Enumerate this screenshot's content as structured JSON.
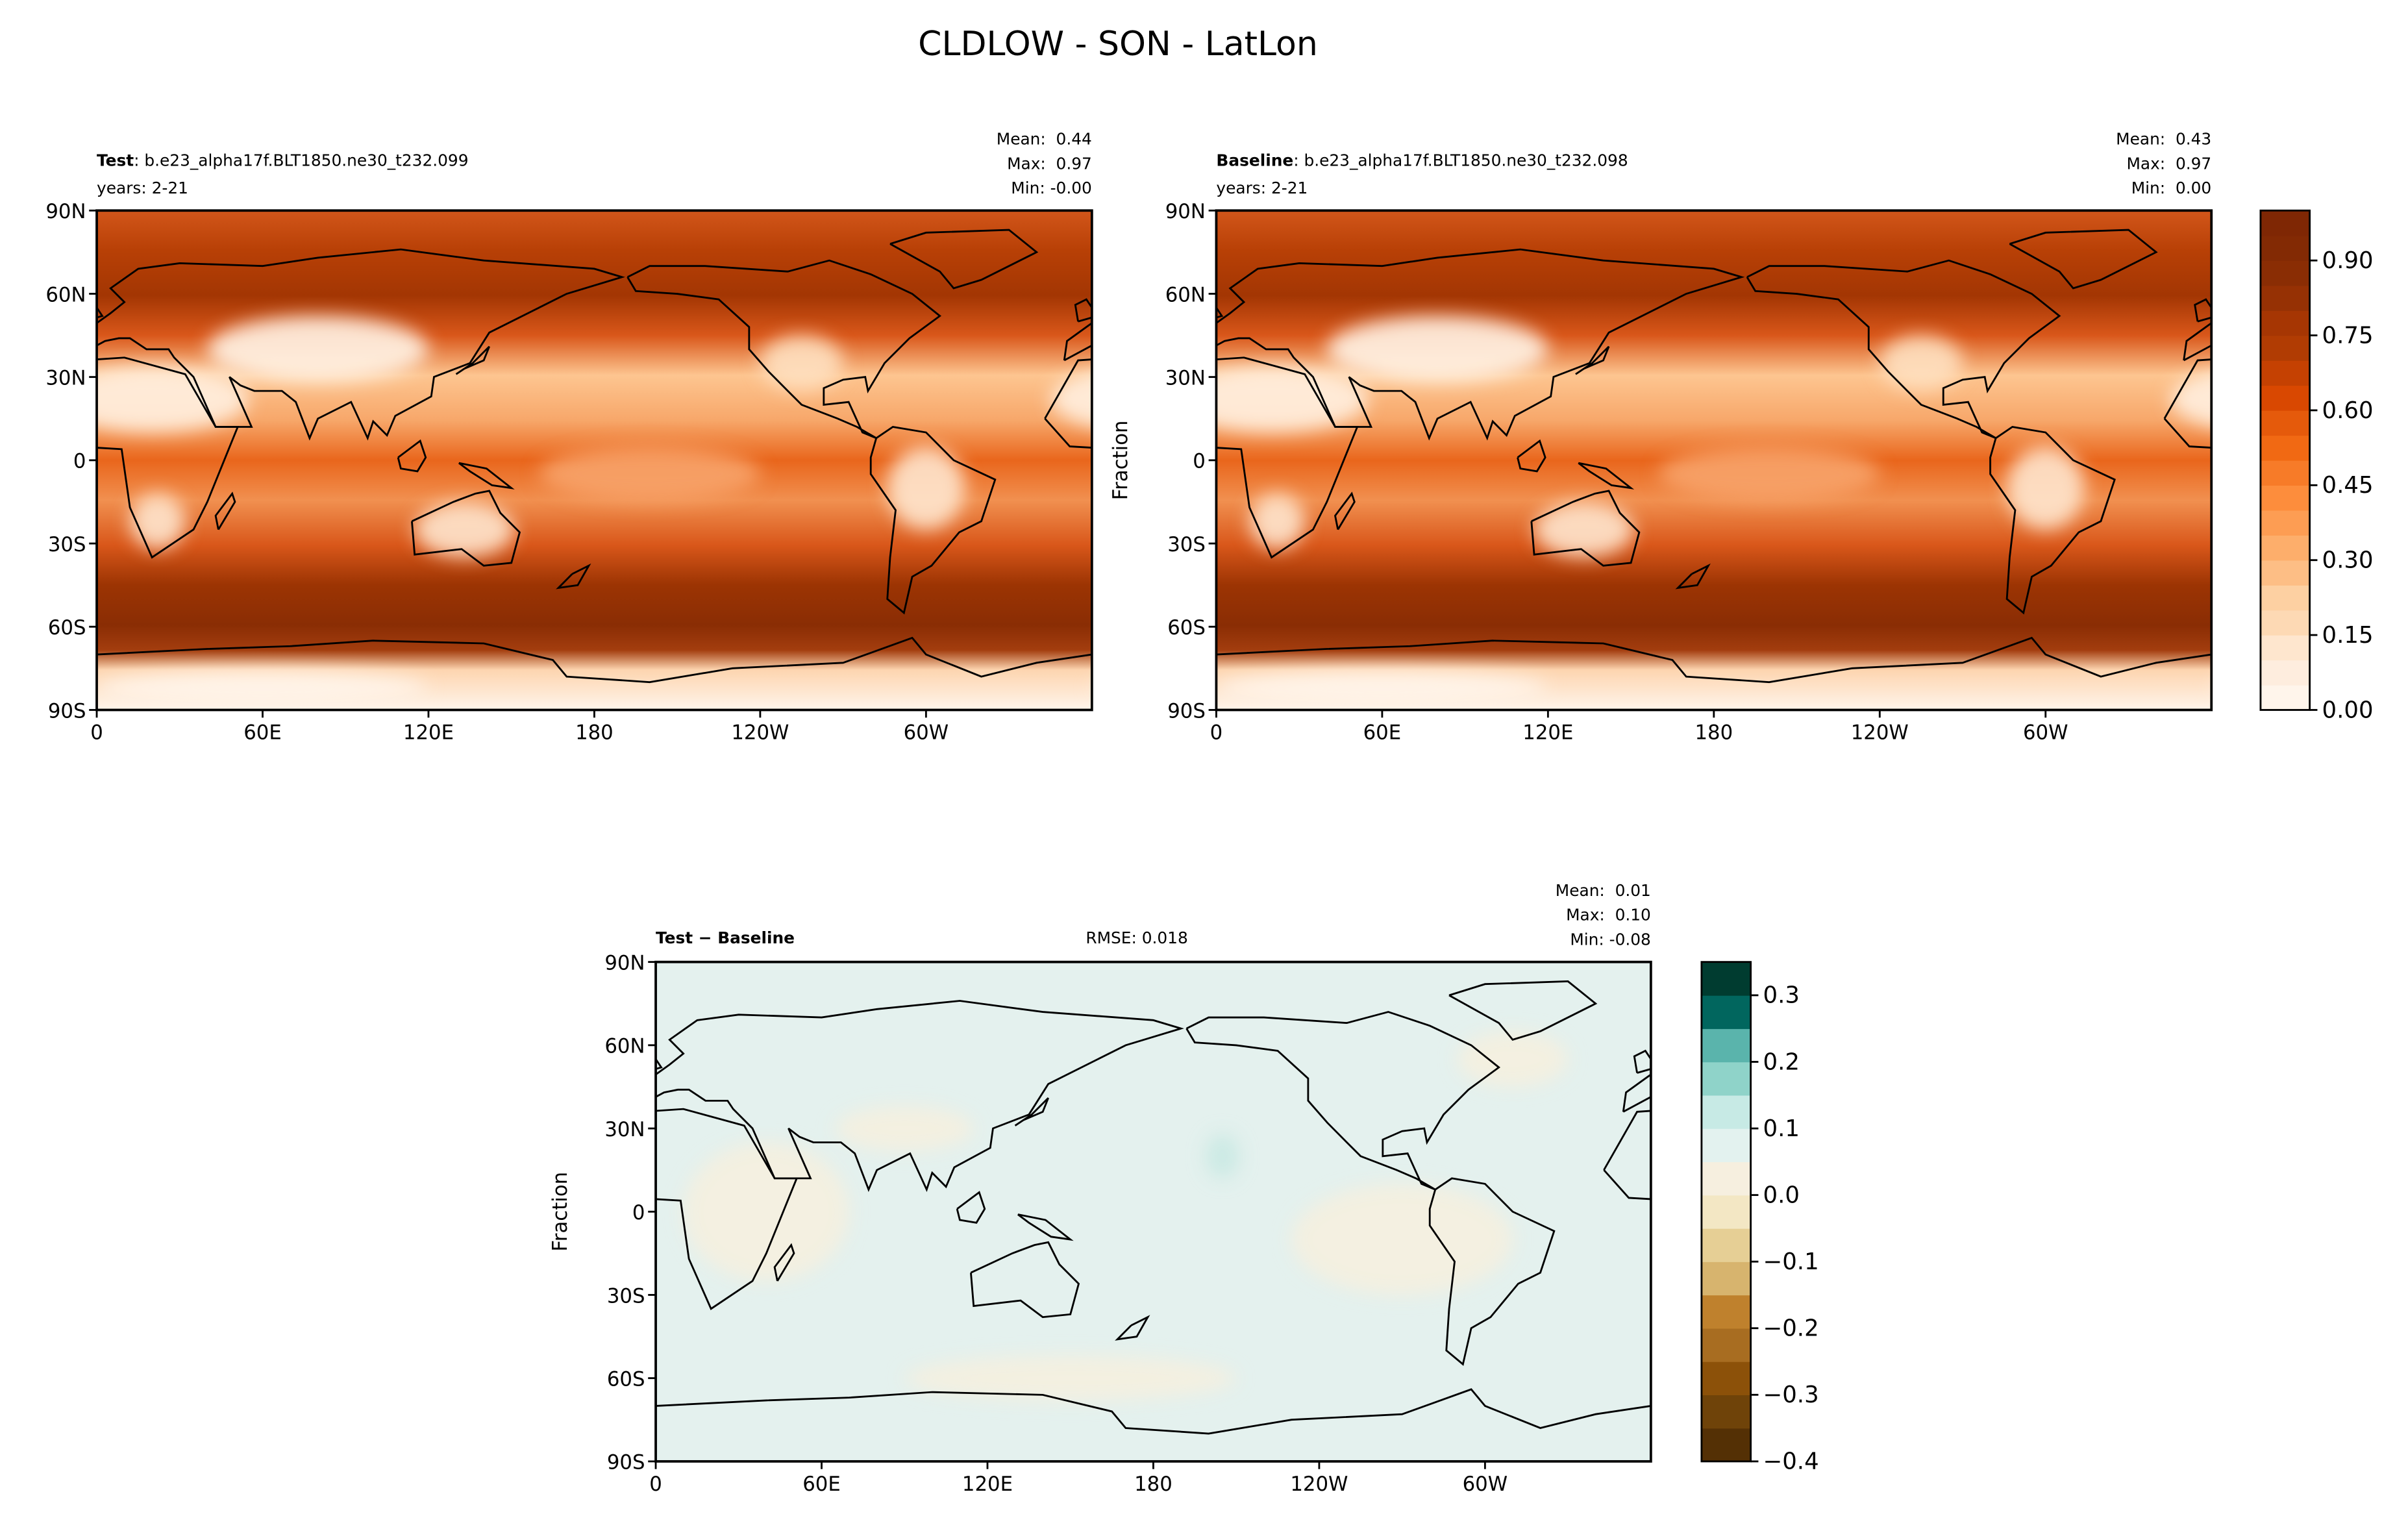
{
  "title": "CLDLOW - SON - LatLon",
  "panels": [
    {
      "kind": "field",
      "name": "Test",
      "case": ": b.e23_alpha17f.BLT1850.ne30_t232.099",
      "years": "years: 2-21",
      "stats": [
        "Mean:  0.44",
        "Max:  0.97",
        "Min: -0.00"
      ],
      "xlim": [
        0,
        360
      ],
      "ylim": [
        -90,
        90
      ],
      "xticks": [
        0,
        {
          "value": 60,
          "label": "60E"
        },
        {
          "value": 120,
          "label": "120E"
        },
        180,
        {
          "value": 240,
          "label": "120W"
        },
        {
          "value": 300,
          "label": "60W"
        }
      ],
      "yticks": [
        {
          "value": -90,
          "label": "90S"
        },
        {
          "value": -60,
          "label": "60S"
        },
        {
          "value": -30,
          "label": "30S"
        },
        0,
        {
          "value": 30,
          "label": "30N"
        },
        {
          "value": 60,
          "label": "60N"
        },
        {
          "value": 90,
          "label": "90N"
        }
      ]
    },
    {
      "kind": "field",
      "name": "Baseline",
      "case": ": b.e23_alpha17f.BLT1850.ne30_t232.098",
      "years": "years: 2-21",
      "stats": [
        "Mean:  0.43",
        "Max:  0.97",
        "Min:  0.00"
      ],
      "ylabel": "Fraction",
      "xlim": [
        0,
        360
      ],
      "ylim": [
        -90,
        90
      ],
      "xticks": [
        0,
        {
          "value": 60,
          "label": "60E"
        },
        {
          "value": 120,
          "label": "120E"
        },
        180,
        {
          "value": 240,
          "label": "120W"
        },
        {
          "value": 300,
          "label": "60W"
        }
      ],
      "yticks": [
        {
          "value": -90,
          "label": "90S"
        },
        {
          "value": -60,
          "label": "60S"
        },
        {
          "value": -30,
          "label": "30S"
        },
        0,
        {
          "value": 30,
          "label": "30N"
        },
        {
          "value": 60,
          "label": "60N"
        },
        {
          "value": 90,
          "label": "90N"
        }
      ]
    },
    {
      "kind": "diff",
      "name": "Test − Baseline",
      "rmse": "RMSE: 0.018",
      "stats": [
        "Mean:  0.01",
        "Max:  0.10",
        "Min: -0.08"
      ],
      "ylabel": "Fraction",
      "xlim": [
        0,
        360
      ],
      "ylim": [
        -90,
        90
      ],
      "xticks": [
        0,
        {
          "value": 60,
          "label": "60E"
        },
        {
          "value": 120,
          "label": "120E"
        },
        180,
        {
          "value": 240,
          "label": "120W"
        },
        {
          "value": 300,
          "label": "60W"
        }
      ],
      "yticks": [
        {
          "value": -90,
          "label": "90S"
        },
        {
          "value": -60,
          "label": "60S"
        },
        {
          "value": -30,
          "label": "30S"
        },
        0,
        {
          "value": 30,
          "label": "30N"
        },
        {
          "value": 60,
          "label": "60N"
        },
        {
          "value": 90,
          "label": "90N"
        }
      ]
    }
  ],
  "colorbars": [
    {
      "lim": [
        0,
        1
      ],
      "ticks": [
        {
          "value": 0,
          "label": "0.00"
        },
        0.15,
        {
          "value": 0.3,
          "label": "0.30"
        },
        0.45,
        {
          "value": 0.6,
          "label": "0.60"
        },
        0.75,
        {
          "value": 0.9,
          "label": "0.90"
        }
      ],
      "colors": [
        "#fff5eb",
        "#feedde",
        "#fee6ce",
        "#fdd9b4",
        "#fdd0a2",
        "#fdbe85",
        "#fdae6b",
        "#fd9d53",
        "#fd8d3c",
        "#f77b28",
        "#f16913",
        "#e55a0b",
        "#d94801",
        "#c54102",
        "#b13c03",
        "#a63603",
        "#963104",
        "#8a2d04",
        "#832a04",
        "#7f2704"
      ]
    },
    {
      "lim": [
        -0.4,
        0.35
      ],
      "ticks": [
        {
          "value": -0.4,
          "label": "−0.4"
        },
        {
          "value": -0.3,
          "label": "−0.3"
        },
        {
          "value": -0.2,
          "label": "−0.2"
        },
        {
          "value": -0.1,
          "label": "−0.1"
        },
        {
          "value": 0,
          "label": "0.0"
        },
        0.1,
        0.2,
        0.3
      ],
      "colors": [
        "#543005",
        "#6f4309",
        "#8c5109",
        "#a86d21",
        "#bf812d",
        "#d7b46e",
        "#e6cf95",
        "#f3e7c4",
        "#f6efdf",
        "#e3f2ef",
        "#c7eae5",
        "#8fd3c9",
        "#5ab4ac",
        "#01665e",
        "#003c30"
      ]
    }
  ]
}
